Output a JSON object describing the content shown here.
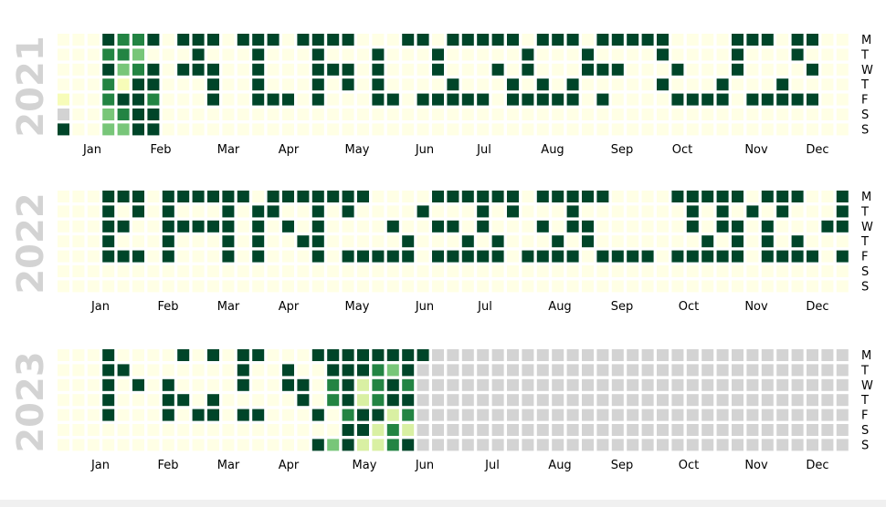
{
  "chart_data": {
    "type": "heatmap",
    "legend": "none",
    "colors": {
      "empty": "#ffffe5",
      "no_data": "#d3d3d3",
      "levels": [
        "#f7fcb9",
        "#d9f0a3",
        "#78c679",
        "#238443",
        "#004529"
      ]
    },
    "weekday_labels": [
      "M",
      "T",
      "W",
      "T",
      "F",
      "S",
      "S"
    ],
    "grid_rows": {
      "2021": [
        "...5445.555.555.5555...55.55555.555.55555....555.55",
        "...443...5...5...5...5...5.....5...5....5....5...5.",
        "...5345.555..5...555.5...5...5.5...555...5...5....5",
        "...4155...5..5...5.5.5....5...5.5.5.....5...5...5..",
        "1..4554...5..555.5...55.55555.55555.5....5555.55555",
        "0..3455..............................................",
        "5..3355.............................................."
      ],
      "2022": [
        "...555.555555.5555555....555555.55555....55555.555..555",
        "...5.5.5...5.55..5.5....5...5.5...5.......5.5.5.5...5",
        "...55..55555.5.5.5....5..55.5...5.55......5.55.5...55",
        "...5...5...5.5..55.....5...5.5...5.5.......5.5.5.5...5",
        "...555.5...5.5...5.55555.55555.5555.5555.55555.5555.55",
        "......................................................",
        "......................................................"
      ],
      "2023": [
        "...5....5.5.55...555555554455555",
        "...55.......5..5..555435355345555",
        "...5.5.5....5..55.4524542535555",
        "...5...55.5.....5.45245524353535",
        "...5...5.55.55...5.45524424543",
        "...................5524254355",
        ".................535224555555"
      ]
    },
    "years": [
      {
        "label": "2021",
        "months": [
          "Jan",
          "Feb",
          "Mar",
          "Apr",
          "May",
          "Jun",
          "Jul",
          "Aug",
          "Sep",
          "Oct",
          "Nov",
          "Dec"
        ]
      },
      {
        "label": "2022",
        "months": [
          "Jan",
          "Feb",
          "Mar",
          "Apr",
          "May",
          "Jun",
          "Jul",
          "Aug",
          "Sep",
          "Oct",
          "Nov",
          "Dec"
        ]
      },
      {
        "label": "2023",
        "months": [
          "Jan",
          "Feb",
          "Mar",
          "Apr",
          "May",
          "Jun",
          "Jul",
          "Aug",
          "Sep",
          "Oct",
          "Nov",
          "Dec"
        ]
      }
    ]
  }
}
